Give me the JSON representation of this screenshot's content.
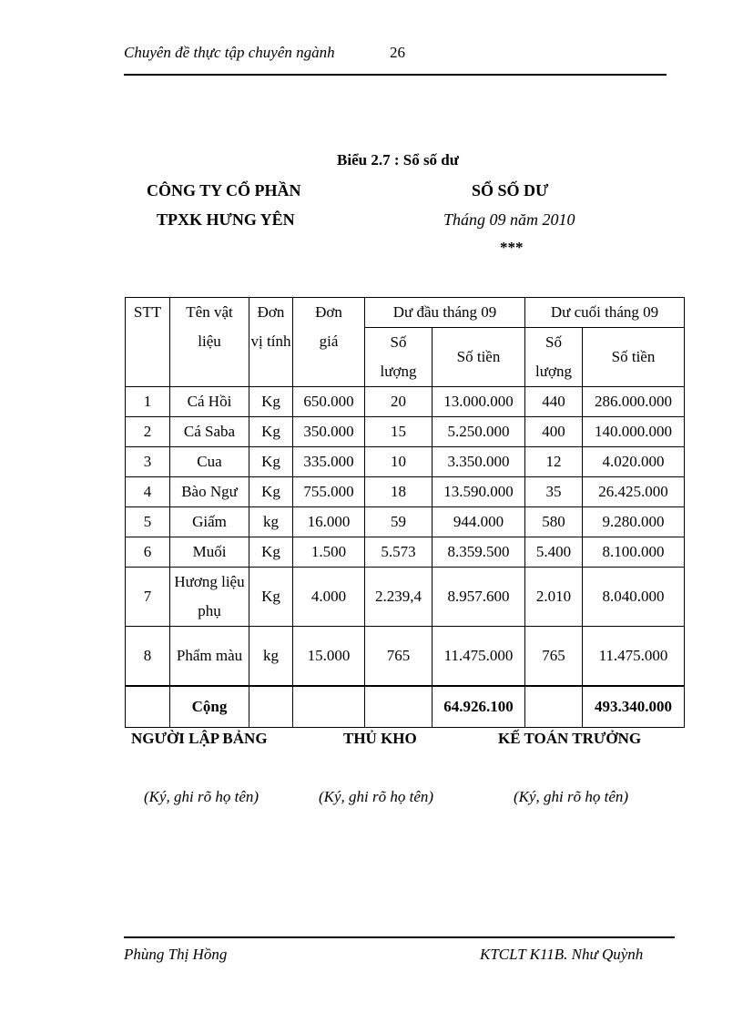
{
  "header": {
    "title": "Chuyên đề thực tập chuyên ngành",
    "page": "26"
  },
  "caption": "Biểu 2.7 : Sổ số dư",
  "company": {
    "line1": "CÔNG TY CỔ PHẦN",
    "line2": "TPXK HƯNG YÊN"
  },
  "book": {
    "title": "SỔ SỐ DƯ",
    "period": "Tháng 09 năm 2010",
    "stars": "***"
  },
  "table": {
    "headers": {
      "stt": "STT",
      "name": "Tên vật liệu",
      "unit": "Đơn vị tính",
      "price": "Đơn giá",
      "opening": "Dư đầu tháng 09",
      "closing": "Dư cuối tháng 09",
      "qty": "Số lượng",
      "amount": "Số tiền"
    },
    "rows": [
      {
        "stt": "1",
        "name": "Cá Hồi",
        "unit": "Kg",
        "price": "650.000",
        "oq": "20",
        "oa": "13.000.000",
        "cq": "440",
        "ca": "286.000.000"
      },
      {
        "stt": "2",
        "name": "Cá Saba",
        "unit": "Kg",
        "price": "350.000",
        "oq": "15",
        "oa": "5.250.000",
        "cq": "400",
        "ca": "140.000.000"
      },
      {
        "stt": "3",
        "name": "Cua",
        "unit": "Kg",
        "price": "335.000",
        "oq": "10",
        "oa": "3.350.000",
        "cq": "12",
        "ca": "4.020.000"
      },
      {
        "stt": "4",
        "name": "Bào Ngư",
        "unit": "Kg",
        "price": "755.000",
        "oq": "18",
        "oa": "13.590.000",
        "cq": "35",
        "ca": "26.425.000"
      },
      {
        "stt": "5",
        "name": "Giấm",
        "unit": "kg",
        "price": "16.000",
        "oq": "59",
        "oa": "944.000",
        "cq": "580",
        "ca": "9.280.000"
      },
      {
        "stt": "6",
        "name": "Muối",
        "unit": "Kg",
        "price": "1.500",
        "oq": "5.573",
        "oa": "8.359.500",
        "cq": "5.400",
        "ca": "8.100.000"
      },
      {
        "stt": "7",
        "name": "Hương liệu phụ",
        "unit": "Kg",
        "price": "4.000",
        "oq": "2.239,4",
        "oa": "8.957.600",
        "cq": "2.010",
        "ca": "8.040.000"
      },
      {
        "stt": "8",
        "name": "Phẩm màu",
        "unit": "kg",
        "price": "15.000",
        "oq": "765",
        "oa": "11.475.000",
        "cq": "765",
        "ca": "11.475.000"
      }
    ],
    "total": {
      "label": "Cộng",
      "oa": "64.926.100",
      "ca": "493.340.000"
    }
  },
  "signatures": [
    {
      "role": "NGƯỜI LẬP BẢNG",
      "note": "(Ký, ghi rõ họ tên)"
    },
    {
      "role": "THỦ KHO",
      "note": "(Ký, ghi rõ họ tên)"
    },
    {
      "role": "KẾ TOÁN TRƯỞNG",
      "note": "(Ký, ghi rõ họ tên)"
    }
  ],
  "footer": {
    "left": "Phùng Thị Hồng",
    "right": "KTCLT K11B. Như Quỳnh"
  }
}
